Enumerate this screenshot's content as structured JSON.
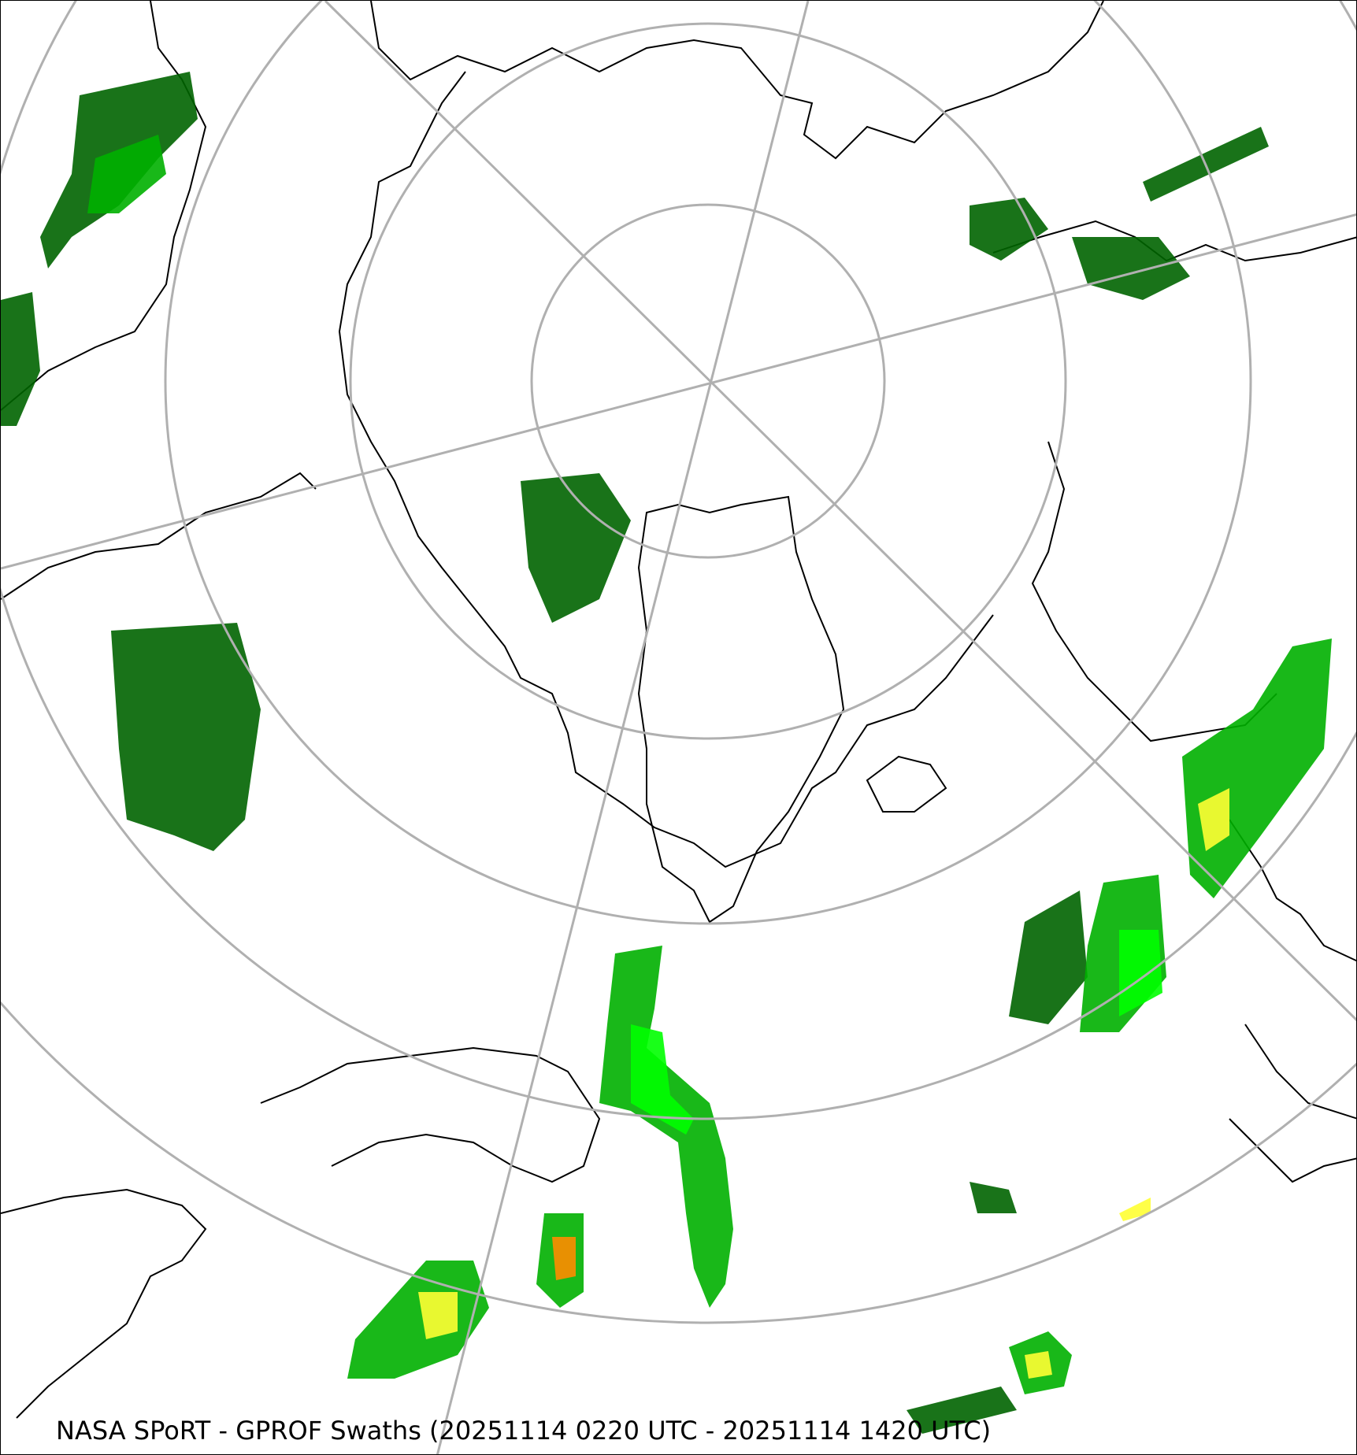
{
  "map": {
    "caption": "NASA SPoRT - GPROF Swaths (20251114 0220 UTC - 20251114 1420 UTC)",
    "projection": "north polar stereographic",
    "colors": {
      "graticule": "#b0b0b0",
      "coastline": "#000000",
      "precip_light": "#006400",
      "precip_mid": "#00b000",
      "precip_high": "#00ff00",
      "precip_heavy": "#ffff33",
      "precip_extreme": "#ff8c00"
    }
  }
}
